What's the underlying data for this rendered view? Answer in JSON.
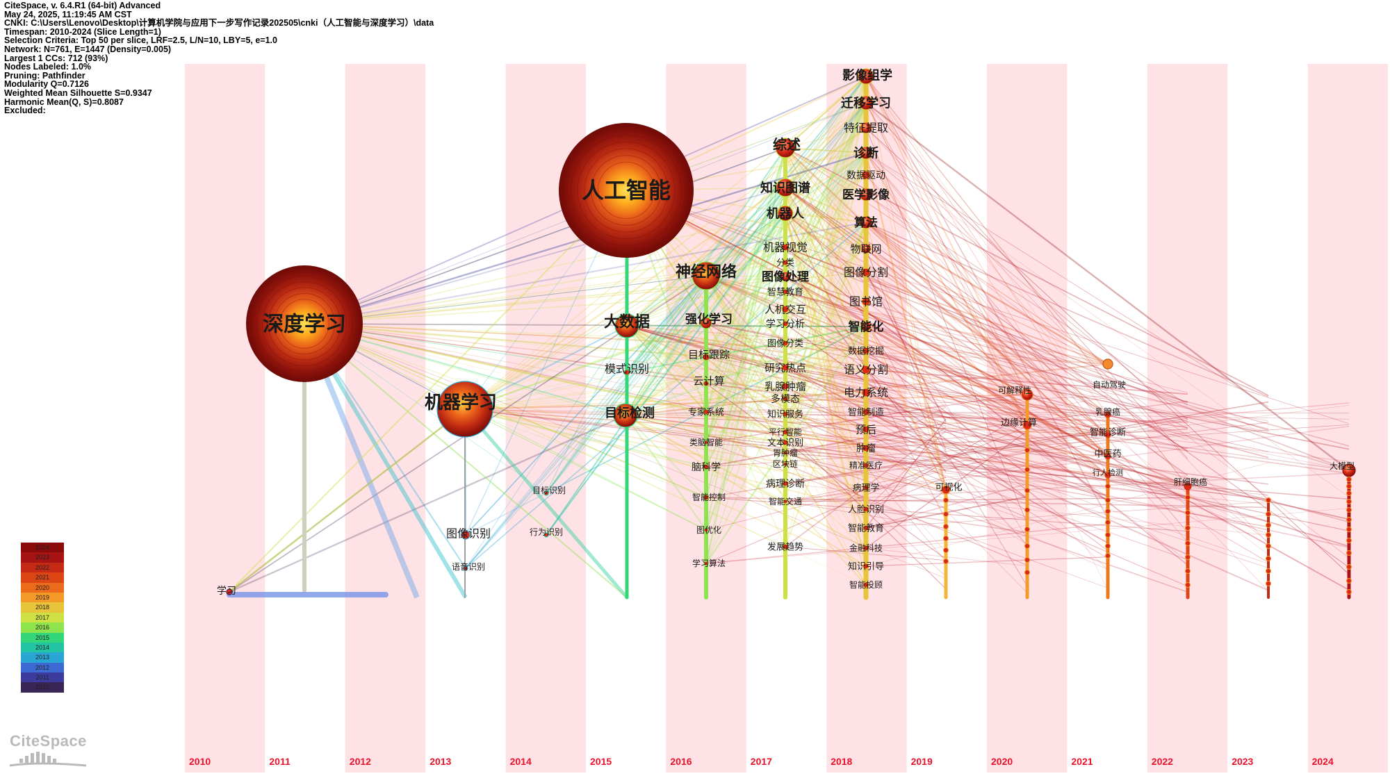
{
  "header": {
    "lines": [
      "CiteSpace, v. 6.4.R1 (64-bit) Advanced",
      "May 24, 2025, 11:19:45 AM CST",
      "CNKI: C:\\Users\\Lenovo\\Desktop\\计算机学院与应用下一步写作记录202505\\cnki（人工智能与深度学习）\\data",
      "Timespan: 2010-2024 (Slice Length=1)",
      "Selection Criteria: Top 50 per slice, LRF=2.5, L/N=10, LBY=5, e=1.0",
      "Network: N=761, E=1447 (Density=0.005)",
      "Largest 1 CCs: 712 (93%)",
      "Nodes Labeled: 1.0%",
      "Pruning: Pathfinder",
      "Modularity Q=0.7126",
      "Weighted Mean Silhouette S=0.9347",
      "Harmonic Mean(Q, S)=0.8087",
      "Excluded:"
    ]
  },
  "years": [
    "2010",
    "2011",
    "2012",
    "2013",
    "2014",
    "2015",
    "2016",
    "2017",
    "2018",
    "2019",
    "2020",
    "2021",
    "2022",
    "2023",
    "2024"
  ],
  "legend": {
    "years": [
      "2024",
      "2023",
      "2022",
      "2021",
      "2020",
      "2019",
      "2018",
      "2017",
      "2016",
      "2015",
      "2014",
      "2013",
      "2012",
      "2011",
      "2010"
    ],
    "colors": [
      "#8b0a0a",
      "#a81414",
      "#c42a14",
      "#dc4614",
      "#ec6a1c",
      "#f49a28",
      "#e8c43a",
      "#cde044",
      "#8ee44c",
      "#34d67a",
      "#22c4a4",
      "#2aa6d4",
      "#3c6ad2",
      "#3c3c9e",
      "#3a2656"
    ]
  },
  "logo": {
    "text": "CiteSpace"
  },
  "colors": {
    "stripe": "#ffe2e6",
    "year_label": "#e8122a",
    "label": "#1a1a1a"
  },
  "nodes": [
    {
      "label": "深度学习",
      "year": "2011"
    },
    {
      "label": "人工智能",
      "year": "2015"
    },
    {
      "label": "机器学习",
      "year": "2013"
    },
    {
      "label": "神经网络",
      "year": "2016"
    },
    {
      "label": "大数据",
      "year": "2015"
    },
    {
      "label": "目标检测",
      "year": "2015"
    },
    {
      "label": "模式识别",
      "year": "2015"
    },
    {
      "label": "强化学习",
      "year": "2016"
    },
    {
      "label": "目标跟踪",
      "year": "2016"
    },
    {
      "label": "云计算",
      "year": "2016"
    },
    {
      "label": "专家系统",
      "year": "2016"
    },
    {
      "label": "类脑智能",
      "year": "2016"
    },
    {
      "label": "脑科学",
      "year": "2016"
    },
    {
      "label": "智能控制",
      "year": "2016"
    },
    {
      "label": "图优化",
      "year": "2016"
    },
    {
      "label": "学习算法",
      "year": "2016"
    },
    {
      "label": "综述",
      "year": "2017"
    },
    {
      "label": "知识图谱",
      "year": "2017"
    },
    {
      "label": "机器人",
      "year": "2017"
    },
    {
      "label": "机器视觉",
      "year": "2017"
    },
    {
      "label": "分类",
      "year": "2017"
    },
    {
      "label": "图像处理",
      "year": "2017"
    },
    {
      "label": "智慧教育",
      "year": "2017"
    },
    {
      "label": "人机交互",
      "year": "2017"
    },
    {
      "label": "学习分析",
      "year": "2017"
    },
    {
      "label": "图像分类",
      "year": "2017"
    },
    {
      "label": "研究热点",
      "year": "2017"
    },
    {
      "label": "乳腺肿瘤",
      "year": "2017"
    },
    {
      "label": "多模态",
      "year": "2017"
    },
    {
      "label": "知识服务",
      "year": "2017"
    },
    {
      "label": "平行智能",
      "year": "2017"
    },
    {
      "label": "文本识别",
      "year": "2017"
    },
    {
      "label": "胃肿瘤",
      "year": "2017"
    },
    {
      "label": "区块链",
      "year": "2017"
    },
    {
      "label": "病理诊断",
      "year": "2017"
    },
    {
      "label": "智能交通",
      "year": "2017"
    },
    {
      "label": "发展趋势",
      "year": "2017"
    },
    {
      "label": "影像组学",
      "year": "2018"
    },
    {
      "label": "迁移学习",
      "year": "2018"
    },
    {
      "label": "特征提取",
      "year": "2018"
    },
    {
      "label": "诊断",
      "year": "2018"
    },
    {
      "label": "数据驱动",
      "year": "2018"
    },
    {
      "label": "医学影像",
      "year": "2018"
    },
    {
      "label": "算法",
      "year": "2018"
    },
    {
      "label": "物联网",
      "year": "2018"
    },
    {
      "label": "图像分割",
      "year": "2018"
    },
    {
      "label": "图书馆",
      "year": "2018"
    },
    {
      "label": "智能化",
      "year": "2018"
    },
    {
      "label": "数据挖掘",
      "year": "2018"
    },
    {
      "label": "语义分割",
      "year": "2018"
    },
    {
      "label": "电力系统",
      "year": "2018"
    },
    {
      "label": "智能制造",
      "year": "2018"
    },
    {
      "label": "预后",
      "year": "2018"
    },
    {
      "label": "肿瘤",
      "year": "2018"
    },
    {
      "label": "精准医疗",
      "year": "2018"
    },
    {
      "label": "病理学",
      "year": "2018"
    },
    {
      "label": "人脸识别",
      "year": "2018"
    },
    {
      "label": "智能教育",
      "year": "2018"
    },
    {
      "label": "金融科技",
      "year": "2018"
    },
    {
      "label": "知识引导",
      "year": "2018"
    },
    {
      "label": "智能投顾",
      "year": "2018"
    },
    {
      "label": "可视化",
      "year": "2019"
    },
    {
      "label": "可解释性",
      "year": "2020"
    },
    {
      "label": "边缘计算",
      "year": "2020"
    },
    {
      "label": "自动驾驶",
      "year": "2021"
    },
    {
      "label": "乳腺癌",
      "year": "2021"
    },
    {
      "label": "智能诊断",
      "year": "2021"
    },
    {
      "label": "中医药",
      "year": "2021"
    },
    {
      "label": "行人检测",
      "year": "2021"
    },
    {
      "label": "肝细胞癌",
      "year": "2022"
    },
    {
      "label": "大模型",
      "year": "2024"
    },
    {
      "label": "学习",
      "year": "2010"
    },
    {
      "label": "目标识别",
      "year": "2014"
    },
    {
      "label": "行为识别",
      "year": "2014"
    },
    {
      "label": "图像识别",
      "year": "2013"
    },
    {
      "label": "语音识别",
      "year": "2013"
    }
  ]
}
